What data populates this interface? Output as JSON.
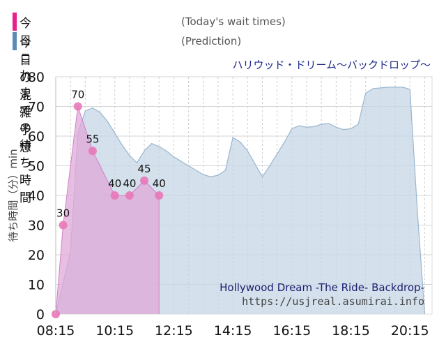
{
  "legend": {
    "today": {
      "label": "今日これまでの待ち時間",
      "note": "(Today's wait times)",
      "color": "#e8208a"
    },
    "prediction": {
      "label": "今日の混雑予想",
      "note": "(Prediction)",
      "color": "#5a8bb8"
    }
  },
  "chart_data": {
    "type": "area",
    "subtitle": "ハリウッド・ドリーム〜バックドロップ〜",
    "ylabel": "待ち時間（分）min",
    "ylim": [
      0,
      80
    ],
    "yticks": [
      0,
      10,
      20,
      30,
      40,
      50,
      60,
      70,
      80
    ],
    "xlim": [
      "08:15",
      "21:00"
    ],
    "xticks": [
      "08:15",
      "10:15",
      "12:15",
      "14:15",
      "16:15",
      "18:15",
      "20:15"
    ],
    "grid": true,
    "series": [
      {
        "name": "今日の混雑予想",
        "color": "#c5d6e4",
        "line_color": "#9ab6cf",
        "points": [
          [
            "08:15",
            0
          ],
          [
            "08:45",
            21
          ],
          [
            "09:00",
            61
          ],
          [
            "09:15",
            68.5
          ],
          [
            "09:30",
            69.5
          ],
          [
            "09:45",
            68
          ],
          [
            "10:00",
            65
          ],
          [
            "10:15",
            61
          ],
          [
            "10:30",
            57
          ],
          [
            "10:45",
            53.5
          ],
          [
            "11:00",
            51
          ],
          [
            "11:15",
            55
          ],
          [
            "11:30",
            57.5
          ],
          [
            "11:45",
            56.5
          ],
          [
            "12:00",
            55
          ],
          [
            "12:15",
            53
          ],
          [
            "12:45",
            50
          ],
          [
            "13:15",
            47
          ],
          [
            "13:30",
            46.3
          ],
          [
            "13:45",
            46.8
          ],
          [
            "14:00",
            48.5
          ],
          [
            "14:15",
            59.5
          ],
          [
            "14:30",
            58
          ],
          [
            "14:45",
            55
          ],
          [
            "15:15",
            46.3
          ],
          [
            "15:30",
            50
          ],
          [
            "16:00",
            58
          ],
          [
            "16:15",
            62.5
          ],
          [
            "16:30",
            63.5
          ],
          [
            "16:45",
            63
          ],
          [
            "17:00",
            63.2
          ],
          [
            "17:15",
            64
          ],
          [
            "17:30",
            64.3
          ],
          [
            "17:45",
            63
          ],
          [
            "18:00",
            62.2
          ],
          [
            "18:15",
            62.5
          ],
          [
            "18:30",
            64
          ],
          [
            "18:45",
            74.5
          ],
          [
            "19:00",
            76
          ],
          [
            "19:30",
            76.5
          ],
          [
            "20:00",
            76.5
          ],
          [
            "20:15",
            75.8
          ],
          [
            "20:30",
            35
          ],
          [
            "20:45",
            0
          ]
        ]
      },
      {
        "name": "今日これまでの待ち時間",
        "color": "#e0a8d8",
        "line_color": "#d080c8",
        "marker_color": "#e878b8",
        "points": [
          [
            "08:15",
            0
          ],
          [
            "08:30",
            30
          ],
          [
            "09:00",
            70
          ],
          [
            "09:30",
            55
          ],
          [
            "10:15",
            40
          ],
          [
            "10:45",
            40
          ],
          [
            "11:15",
            45
          ],
          [
            "11:45",
            40
          ]
        ],
        "labeled": [
          [
            "08:30",
            30,
            "30"
          ],
          [
            "09:00",
            70,
            "70"
          ],
          [
            "09:30",
            55,
            "55"
          ],
          [
            "10:15",
            40,
            "40"
          ],
          [
            "10:45",
            40,
            "40"
          ],
          [
            "11:15",
            45,
            "45"
          ],
          [
            "11:45",
            40,
            "40"
          ]
        ],
        "end_time": "11:45"
      }
    ],
    "watermark": {
      "line1": "Hollywood Dream -The Ride- Backdrop-",
      "line2": "https://usjreal.asumirai.info"
    }
  }
}
